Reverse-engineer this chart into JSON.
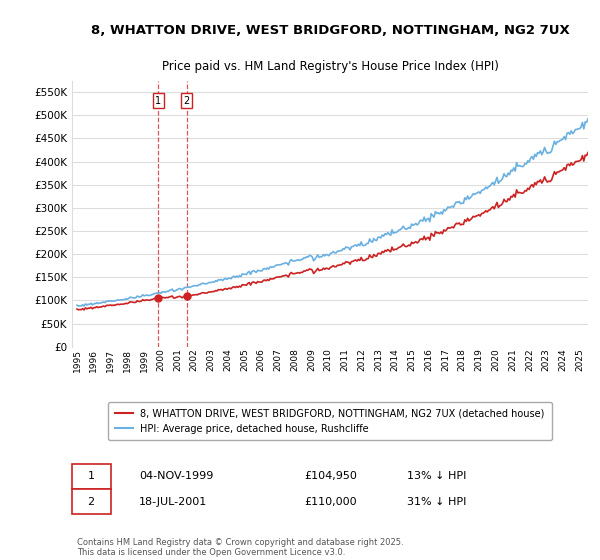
{
  "title_line1": "8, WHATTON DRIVE, WEST BRIDGFORD, NOTTINGHAM, NG2 7UX",
  "title_line2": "Price paid vs. HM Land Registry's House Price Index (HPI)",
  "ylim": [
    0,
    575000
  ],
  "yticks": [
    0,
    50000,
    100000,
    150000,
    200000,
    250000,
    300000,
    350000,
    400000,
    450000,
    500000,
    550000
  ],
  "ytick_labels": [
    "£0",
    "£50K",
    "£100K",
    "£150K",
    "£200K",
    "£250K",
    "£300K",
    "£350K",
    "£400K",
    "£450K",
    "£500K",
    "£550K"
  ],
  "hpi_color": "#6ab0e0",
  "price_color": "#cc2222",
  "background_color": "#ffffff",
  "grid_color": "#dddddd",
  "legend_label_red": "8, WHATTON DRIVE, WEST BRIDGFORD, NOTTINGHAM, NG2 7UX (detached house)",
  "legend_label_blue": "HPI: Average price, detached house, Rushcliffe",
  "transactions": [
    {
      "date": "1999-11-04",
      "price": 104950,
      "label": "1"
    },
    {
      "date": "2001-07-18",
      "price": 110000,
      "label": "2"
    }
  ],
  "table_rows": [
    {
      "num": "1",
      "date": "04-NOV-1999",
      "price": "£104,950",
      "hpi": "13% ↓ HPI"
    },
    {
      "num": "2",
      "date": "18-JUL-2001",
      "price": "£110,000",
      "hpi": "31% ↓ HPI"
    }
  ],
  "footnote": "Contains HM Land Registry data © Crown copyright and database right 2025.\nThis data is licensed under the Open Government Licence v3.0.",
  "x_start_year": 1995,
  "x_end_year": 2025
}
